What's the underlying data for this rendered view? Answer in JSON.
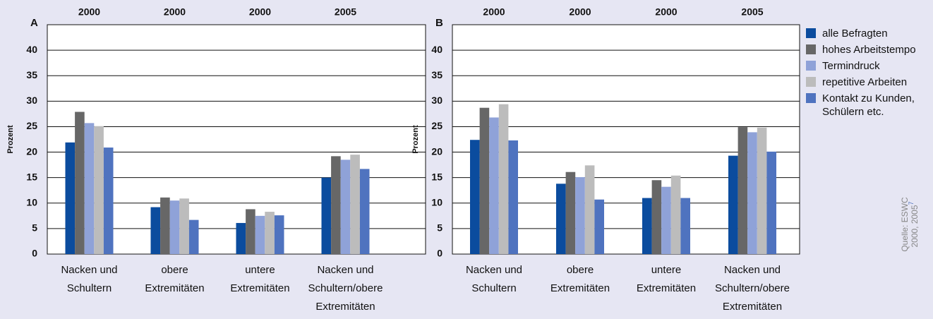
{
  "chart_data": [
    {
      "type": "bar",
      "panel": "A",
      "y_label": "Prozent",
      "top_labels": [
        "2000",
        "2000",
        "2000",
        "2005"
      ],
      "categories": [
        [
          "Nacken und",
          "Schultern"
        ],
        [
          "obere",
          "Extremitäten"
        ],
        [
          "untere",
          "Extremitäten"
        ],
        [
          "Nacken und",
          "Schultern/obere",
          "Extremitäten"
        ]
      ],
      "series": [
        {
          "color": "#0b4c9e",
          "values": [
            21.9,
            9.2,
            6.1,
            15
          ]
        },
        {
          "color": "#676767",
          "values": [
            27.9,
            11.1,
            8.8,
            19.2
          ]
        },
        {
          "color": "#8fa2d8",
          "values": [
            25.7,
            10.5,
            7.5,
            18.5
          ]
        },
        {
          "color": "#bcbcbc",
          "values": [
            25.1,
            10.9,
            8.3,
            19.5
          ]
        },
        {
          "color": "#4f73bf",
          "values": [
            20.9,
            6.7,
            7.6,
            16.7
          ]
        }
      ],
      "ylim": [
        0,
        45
      ],
      "yticks": [
        0,
        5,
        10,
        15,
        20,
        25,
        30,
        35,
        40
      ],
      "grid": true
    },
    {
      "type": "bar",
      "panel": "B",
      "y_label": "Prozent",
      "top_labels": [
        "2000",
        "2000",
        "2000",
        "2005"
      ],
      "categories": [
        [
          "Nacken und",
          "Schultern"
        ],
        [
          "obere",
          "Extremitäten"
        ],
        [
          "untere",
          "Extremitäten"
        ],
        [
          "Nacken und",
          "Schultern/obere",
          "Extremitäten"
        ]
      ],
      "series": [
        {
          "name": "alle Befragten",
          "color": "#0b4c9e",
          "values": [
            22.4,
            13.8,
            11,
            19.3
          ]
        },
        {
          "name": "hohes Arbeitstempo",
          "color": "#676767",
          "values": [
            28.7,
            16.1,
            14.5,
            24.9
          ]
        },
        {
          "name": "Termindruck",
          "color": "#8fa2d8",
          "values": [
            26.8,
            15.1,
            13.2,
            23.9
          ]
        },
        {
          "name": "repetitive Arbeiten",
          "color": "#bcbcbc",
          "values": [
            29.4,
            17.4,
            15.4,
            24.8
          ]
        },
        {
          "name": "Kontakt zu Kunden, Schülern etc.",
          "color": "#4f73bf",
          "values": [
            22.3,
            10.7,
            11,
            20.1
          ]
        }
      ],
      "ylim": [
        0,
        45
      ],
      "yticks": [
        0,
        5,
        10,
        15,
        20,
        25,
        30,
        35,
        40
      ],
      "grid": true
    }
  ],
  "source": [
    "Quelle: ESWC",
    "2000, 2005"
  ],
  "source_ref": "7"
}
